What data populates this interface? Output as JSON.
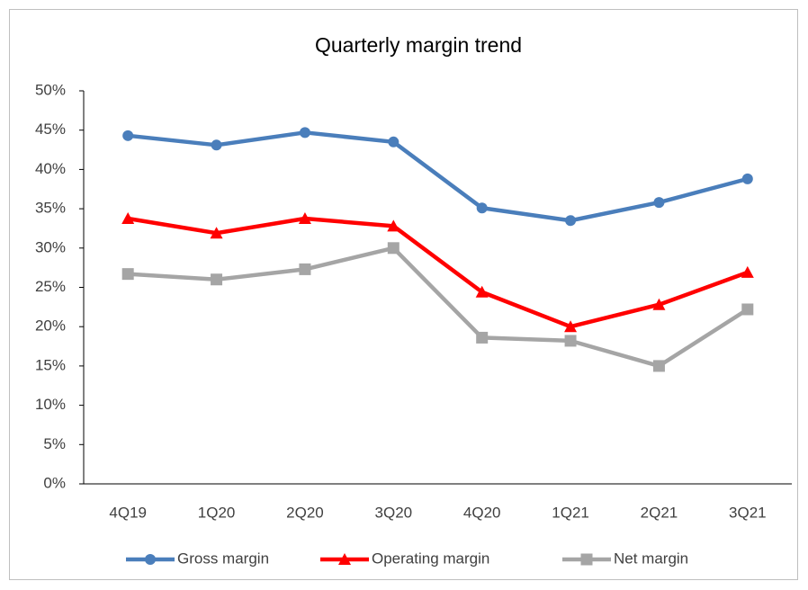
{
  "chart_data": {
    "type": "line",
    "title": "Quarterly margin trend",
    "categories": [
      "4Q19",
      "1Q20",
      "2Q20",
      "3Q20",
      "4Q20",
      "1Q21",
      "2Q21",
      "3Q21"
    ],
    "series": [
      {
        "name": "Gross margin",
        "color": "#4a7ebb",
        "marker": "circle",
        "values": [
          44.3,
          43.1,
          44.7,
          43.5,
          35.1,
          33.5,
          35.8,
          38.8
        ]
      },
      {
        "name": "Operating margin",
        "color": "#ff0000",
        "marker": "triangle",
        "values": [
          33.75,
          31.9,
          33.75,
          32.8,
          24.4,
          20.0,
          22.8,
          26.9
        ]
      },
      {
        "name": "Net margin",
        "color": "#a5a5a5",
        "marker": "square",
        "values": [
          26.7,
          26.0,
          27.3,
          30.0,
          18.6,
          18.2,
          15.0,
          22.2
        ]
      }
    ],
    "ylim": [
      0,
      50
    ],
    "yticks": [
      {
        "value": 0,
        "label": "0%"
      },
      {
        "value": 5,
        "label": "5%"
      },
      {
        "value": 10,
        "label": "10%"
      },
      {
        "value": 15,
        "label": "15%"
      },
      {
        "value": 20,
        "label": "20%"
      },
      {
        "value": 25,
        "label": "25%"
      },
      {
        "value": 30,
        "label": "30%"
      },
      {
        "value": 35,
        "label": "35%"
      },
      {
        "value": 40,
        "label": "40%"
      },
      {
        "value": 45,
        "label": "45%"
      },
      {
        "value": 50,
        "label": "50%"
      }
    ],
    "grid": false,
    "legend": "bottom"
  }
}
